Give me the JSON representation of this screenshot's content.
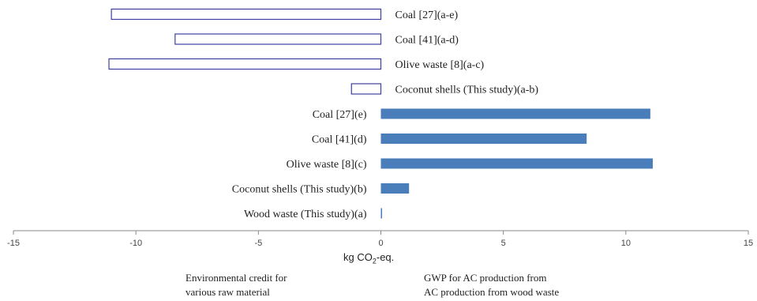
{
  "chart_data": {
    "type": "bar",
    "orientation": "horizontal",
    "xlabel": {
      "prefix": "kg CO",
      "sub": "2",
      "suffix": "-eq."
    },
    "xlim": [
      -15,
      15
    ],
    "xticks": [
      "-15",
      "-10",
      "-5",
      "0",
      "5",
      "10",
      "15"
    ],
    "grid": false,
    "credits": [
      {
        "label": "Coal  [27](a-e)",
        "value": -11.0
      },
      {
        "label": "Coal [41](a-d)",
        "value": -8.4
      },
      {
        "label": "Olive waste [8](a-c)",
        "value": -11.1
      },
      {
        "label": "Coconut shells (This study)(a-b)",
        "value": -1.2
      }
    ],
    "gwp": [
      {
        "label": "Coal  [27](e)",
        "value": 11.0
      },
      {
        "label": "Coal [41](d)",
        "value": 8.4
      },
      {
        "label": "Olive waste [8](c)",
        "value": 11.1
      },
      {
        "label": "Coconut shells (This study)(b)",
        "value": 1.15
      },
      {
        "label": "Wood waste (This study)(a)",
        "value": 0.05
      }
    ],
    "colors": {
      "credit_stroke": "#3f3f9f",
      "gwp_fill": "#4a7ebb",
      "axis": "#888888"
    },
    "annotations": {
      "left": [
        "Environmental credit for",
        "various raw material"
      ],
      "right": [
        "GWP for AC production from",
        "AC production from wood waste"
      ]
    }
  }
}
